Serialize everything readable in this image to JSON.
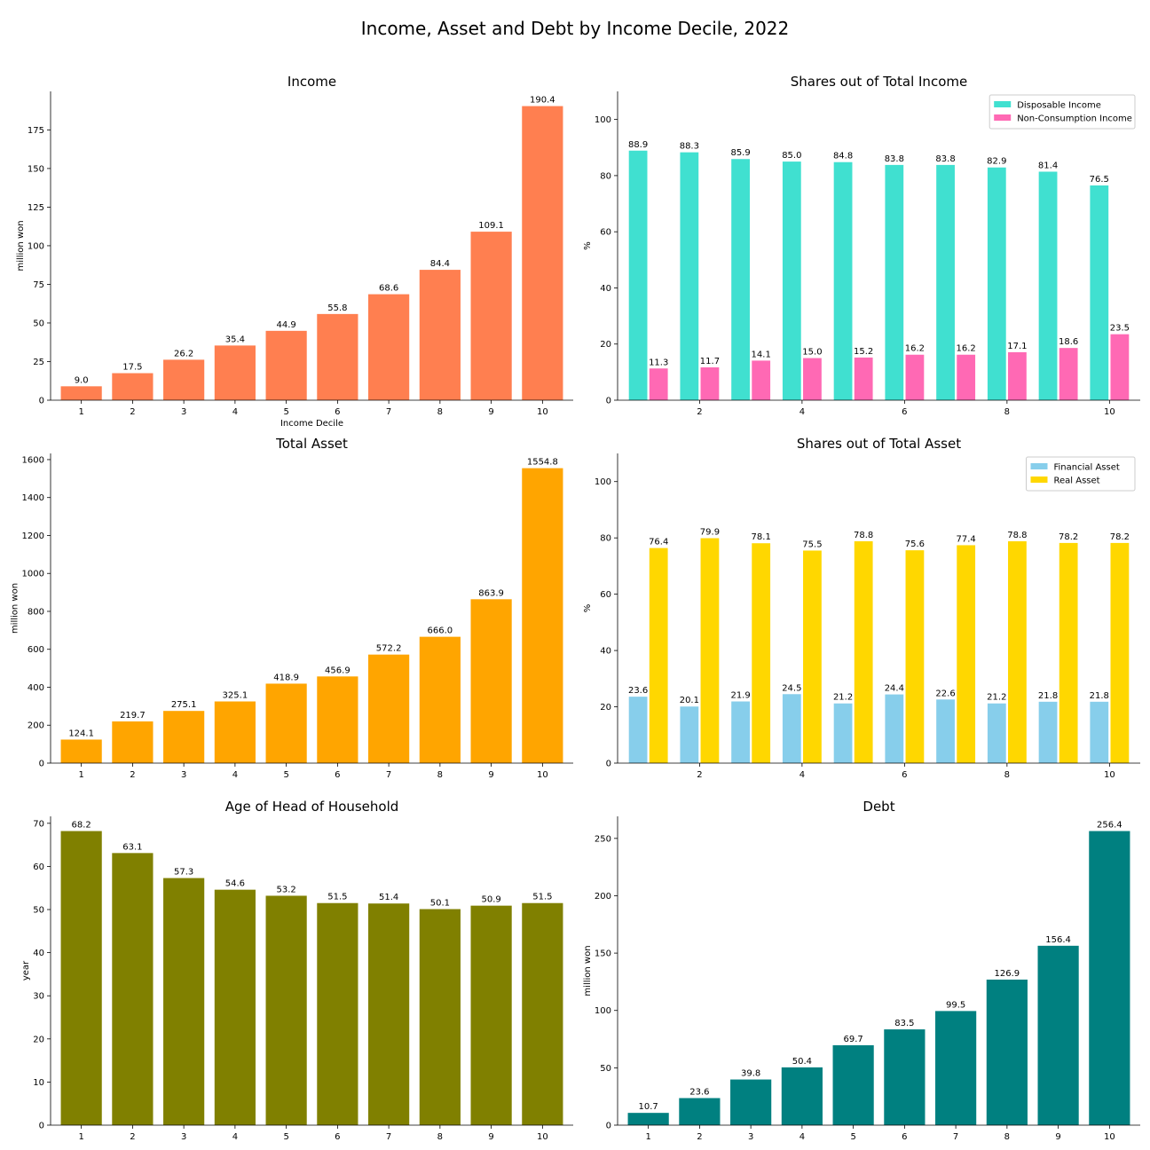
{
  "figure": {
    "title": "Income, Asset and Debt by Income Decile, 2022"
  },
  "chart_data": [
    {
      "type": "bar",
      "title": "Income",
      "xlabel": "Income Decile",
      "ylabel": "million won",
      "categories": [
        "1",
        "2",
        "3",
        "4",
        "5",
        "6",
        "7",
        "8",
        "9",
        "10"
      ],
      "values": [
        9.0,
        17.5,
        26.2,
        35.4,
        44.9,
        55.8,
        68.6,
        84.4,
        109.1,
        190.4
      ],
      "ylim": [
        0,
        199.92
      ],
      "yticks": [
        0,
        25,
        50,
        75,
        100,
        125,
        150,
        175
      ],
      "color": "#FF7F50",
      "grid": false
    },
    {
      "type": "bar",
      "title": "Shares out of Total Income",
      "xlabel": "",
      "ylabel": "%",
      "x": [
        1,
        2,
        3,
        4,
        5,
        6,
        7,
        8,
        9,
        10
      ],
      "xticks": [
        2,
        4,
        6,
        8,
        10
      ],
      "series": [
        {
          "name": "Disposable Income",
          "values": [
            88.9,
            88.3,
            85.9,
            85.0,
            84.8,
            83.8,
            83.8,
            82.9,
            81.4,
            76.5
          ],
          "color": "#40E0D0"
        },
        {
          "name": "Non-Consumption Income",
          "values": [
            11.3,
            11.7,
            14.1,
            15.0,
            15.2,
            16.2,
            16.2,
            17.1,
            18.6,
            23.5
          ],
          "color": "#FF69B4"
        }
      ],
      "ylim": [
        0,
        110
      ],
      "yticks": [
        0,
        20,
        40,
        60,
        80,
        100
      ],
      "legend": "top-right",
      "grid": false
    },
    {
      "type": "bar",
      "title": "Total Asset",
      "xlabel": "",
      "ylabel": "million won",
      "categories": [
        "1",
        "2",
        "3",
        "4",
        "5",
        "6",
        "7",
        "8",
        "9",
        "10"
      ],
      "values": [
        124.1,
        219.7,
        275.1,
        325.1,
        418.9,
        456.9,
        572.2,
        666.0,
        863.9,
        1554.8
      ],
      "ylim": [
        0,
        1632.54
      ],
      "yticks": [
        0,
        200,
        400,
        600,
        800,
        1000,
        1200,
        1400,
        1600
      ],
      "color": "#FFA500",
      "grid": false
    },
    {
      "type": "bar",
      "title": "Shares out of Total Asset",
      "xlabel": "",
      "ylabel": "%",
      "x": [
        1,
        2,
        3,
        4,
        5,
        6,
        7,
        8,
        9,
        10
      ],
      "xticks": [
        2,
        4,
        6,
        8,
        10
      ],
      "series": [
        {
          "name": "Financial Asset",
          "values": [
            23.6,
            20.1,
            21.9,
            24.5,
            21.2,
            24.4,
            22.6,
            21.2,
            21.8,
            21.8
          ],
          "color": "#87CEEB"
        },
        {
          "name": "Real Asset",
          "values": [
            76.4,
            79.9,
            78.1,
            75.5,
            78.8,
            75.6,
            77.4,
            78.8,
            78.2,
            78.2
          ],
          "color": "#FFD700"
        }
      ],
      "ylim": [
        0,
        110
      ],
      "yticks": [
        0,
        20,
        40,
        60,
        80,
        100
      ],
      "legend": "top-right",
      "grid": false
    },
    {
      "type": "bar",
      "title": "Age of Head of Household",
      "xlabel": "",
      "ylabel": "year",
      "categories": [
        "1",
        "2",
        "3",
        "4",
        "5",
        "6",
        "7",
        "8",
        "9",
        "10"
      ],
      "values": [
        68.2,
        63.1,
        57.3,
        54.6,
        53.2,
        51.5,
        51.4,
        50.1,
        50.9,
        51.5
      ],
      "ylim": [
        0,
        71.61
      ],
      "yticks": [
        0,
        10,
        20,
        30,
        40,
        50,
        60,
        70
      ],
      "color": "#808000",
      "grid": false
    },
    {
      "type": "bar",
      "title": "Debt",
      "xlabel": "",
      "ylabel": "million won",
      "categories": [
        "1",
        "2",
        "3",
        "4",
        "5",
        "6",
        "7",
        "8",
        "9",
        "10"
      ],
      "values": [
        10.7,
        23.6,
        39.8,
        50.4,
        69.7,
        83.5,
        99.5,
        126.9,
        156.4,
        256.4
      ],
      "ylim": [
        0,
        269.22
      ],
      "yticks": [
        0,
        50,
        100,
        150,
        200,
        250
      ],
      "color": "#008080",
      "grid": false
    }
  ]
}
